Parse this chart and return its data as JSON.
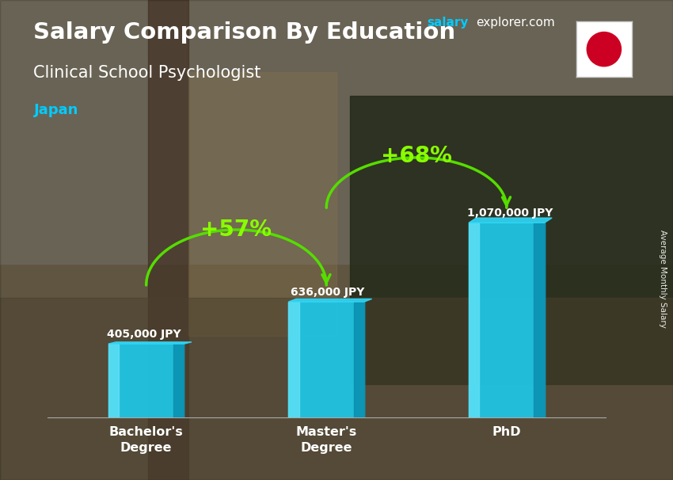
{
  "title_line1": "Salary Comparison By Education",
  "subtitle": "Clinical School Psychologist",
  "country": "Japan",
  "site_salary": "salary",
  "site_rest": "explorer.com",
  "ylabel": "Average Monthly Salary",
  "categories": [
    "Bachelor's\nDegree",
    "Master's\nDegree",
    "PhD"
  ],
  "values": [
    405000,
    636000,
    1070000
  ],
  "value_labels": [
    "405,000 JPY",
    "636,000 JPY",
    "1,070,000 JPY"
  ],
  "bar_color_main": "#1ec8e8",
  "bar_color_light": "#5de0f5",
  "bar_color_dark": "#0a8fb0",
  "bar_color_top": "#30d8f8",
  "pct_labels": [
    "+57%",
    "+68%"
  ],
  "pct_color": "#88ff00",
  "arrow_color": "#55dd00",
  "title_color": "#ffffff",
  "subtitle_color": "#ffffff",
  "country_color": "#00ccff",
  "site_salary_color": "#00ccff",
  "site_rest_color": "#ffffff",
  "value_label_color": "#ffffff",
  "bar_width": 0.42,
  "ylim": [
    0,
    1450000
  ],
  "flag_red": "#cc0022",
  "flag_white": "#ffffff",
  "bg_colors": [
    "#7a6b55",
    "#8a7a65",
    "#5a5048",
    "#4a4838",
    "#6a6050"
  ],
  "overlay_alpha": 0.38
}
